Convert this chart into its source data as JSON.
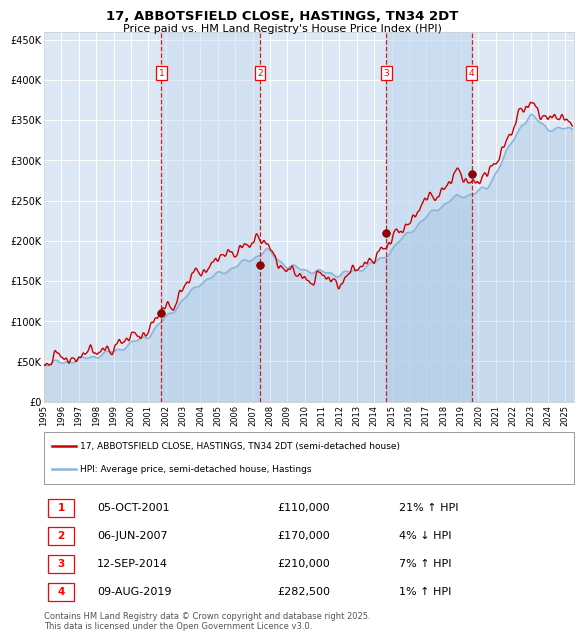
{
  "title": "17, ABBOTSFIELD CLOSE, HASTINGS, TN34 2DT",
  "subtitle": "Price paid vs. HM Land Registry's House Price Index (HPI)",
  "plot_bg_color": "#dce8f5",
  "ylim": [
    0,
    460000
  ],
  "yticks": [
    0,
    50000,
    100000,
    150000,
    200000,
    250000,
    300000,
    350000,
    400000,
    450000
  ],
  "ytick_labels": [
    "£0",
    "£50K",
    "£100K",
    "£150K",
    "£200K",
    "£250K",
    "£300K",
    "£350K",
    "£400K",
    "£450K"
  ],
  "xlim_start": 1995.0,
  "xlim_end": 2025.5,
  "sale_dates": [
    2001.76,
    2007.43,
    2014.7,
    2019.6
  ],
  "sale_prices": [
    110000,
    170000,
    210000,
    282500
  ],
  "sale_labels": [
    "1",
    "2",
    "3",
    "4"
  ],
  "legend_entries": [
    "17, ABBOTSFIELD CLOSE, HASTINGS, TN34 2DT (semi-detached house)",
    "HPI: Average price, semi-detached house, Hastings"
  ],
  "table_rows": [
    [
      "1",
      "05-OCT-2001",
      "£110,000",
      "21% ↑ HPI"
    ],
    [
      "2",
      "06-JUN-2007",
      "£170,000",
      "4% ↓ HPI"
    ],
    [
      "3",
      "12-SEP-2014",
      "£210,000",
      "7% ↑ HPI"
    ],
    [
      "4",
      "09-AUG-2019",
      "£282,500",
      "1% ↑ HPI"
    ]
  ],
  "footer": "Contains HM Land Registry data © Crown copyright and database right 2025.\nThis data is licensed under the Open Government Licence v3.0.",
  "line_color_sale": "#cc0000",
  "line_color_hpi": "#8ab4d8",
  "vline_color": "#cc0000",
  "dot_color": "#990000",
  "shade_color": "#c5d9ef"
}
